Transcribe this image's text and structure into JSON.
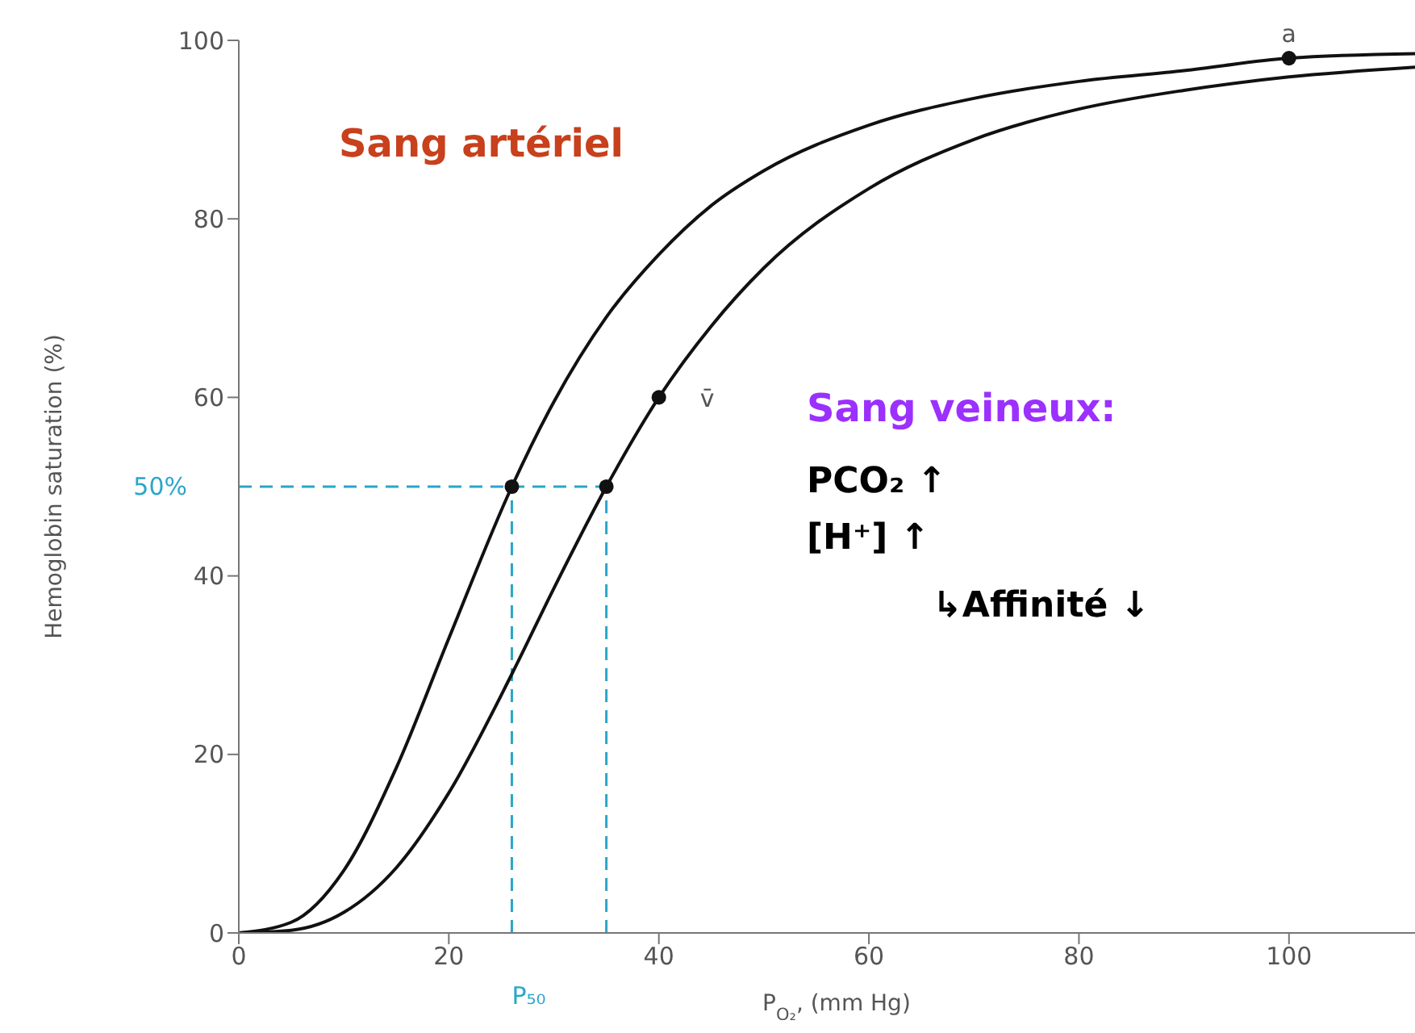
{
  "chart_data": {
    "type": "line",
    "xlabel": "P$_{O₂}$, (mm Hg)",
    "ylabel": "Hemoglobin saturation (%)",
    "xlim": [
      0,
      112
    ],
    "ylim": [
      0,
      100
    ],
    "xticks": [
      0,
      20,
      40,
      60,
      80,
      100
    ],
    "yticks": [
      0,
      20,
      40,
      60,
      80,
      100
    ],
    "grid": false,
    "marker": "none",
    "line_style": "solid",
    "series": [
      {
        "color": "#111111",
        "x": [
          0,
          5,
          10,
          15,
          20,
          26,
          30,
          35,
          40,
          45,
          50,
          60,
          70,
          80,
          90,
          100,
          112
        ],
        "values": [
          0,
          1.2,
          7,
          18.5,
          33,
          50,
          59.5,
          69,
          76,
          81.5,
          85.4,
          90.5,
          93.5,
          95.4,
          96.6,
          98,
          98.5
        ]
      },
      {
        "color": "#111111",
        "x": [
          0,
          5,
          10,
          15,
          20,
          26,
          30,
          35,
          40,
          45,
          50,
          60,
          70,
          80,
          90,
          100,
          112
        ],
        "values": [
          0,
          0.3,
          2.3,
          7.3,
          15.7,
          29,
          38.6,
          50,
          60,
          68,
          74.5,
          83.4,
          88.9,
          92.3,
          94.4,
          95.9,
          97
        ]
      },
      {
        "type": "scatter",
        "marker": "circle",
        "color": "#111111",
        "x": [
          26,
          35,
          40,
          100
        ],
        "values": [
          50,
          50,
          60,
          98
        ]
      }
    ],
    "ref_lines": [
      {
        "axis": "y",
        "value": 50,
        "label": "50%",
        "color": "#2aa6c9",
        "line_style": "dashed"
      },
      {
        "axis": "x",
        "value": 26,
        "label": "P₅₀",
        "color": "#2aa6c9",
        "line_style": "dashed"
      },
      {
        "axis": "x",
        "value": 35,
        "color": "#2aa6c9",
        "line_style": "dashed"
      }
    ],
    "annotations": [
      "Sang artériel",
      "Sang veineux:",
      "PCO₂ ↑",
      "[H⁺] ↑",
      "↳Affinité ↓",
      {
        "text": "a",
        "x": 100,
        "y": 98
      },
      {
        "text": "v̄",
        "x": 40,
        "y": 60
      }
    ]
  }
}
